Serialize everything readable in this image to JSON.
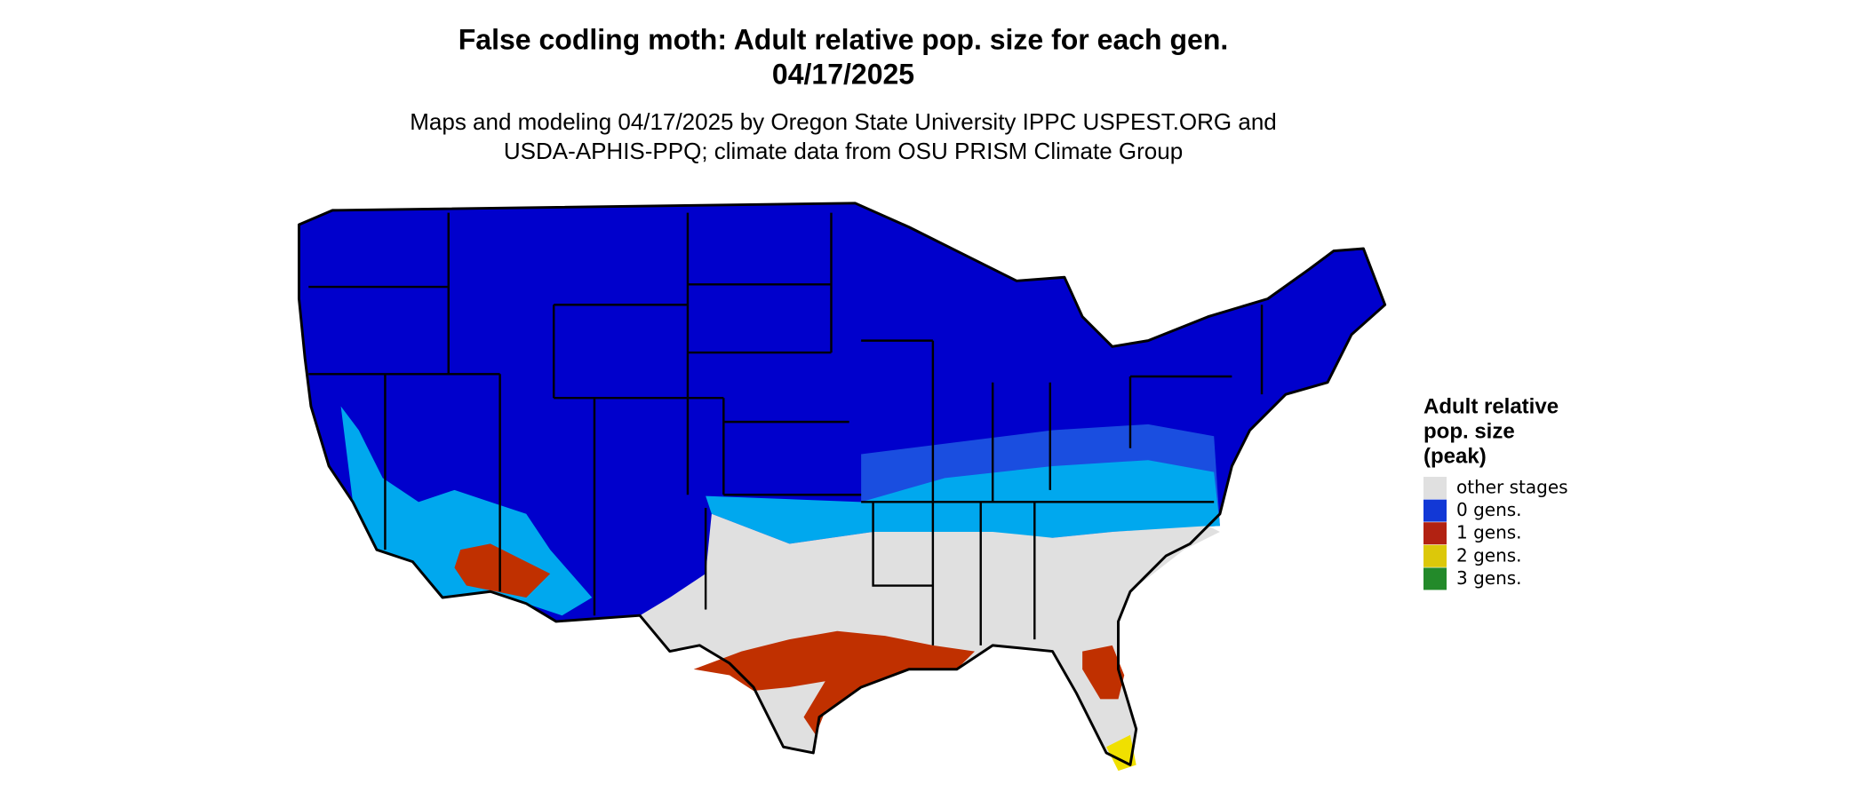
{
  "header": {
    "title": "False codling moth: Adult relative pop. size for each gen.",
    "date": "04/17/2025",
    "subtitle_lines": [
      "Maps and modeling 04/17/2025 by Oregon State University IPPC USPEST.ORG and",
      "USDA-APHIS-PPQ; climate data from OSU PRISM Climate Group"
    ]
  },
  "legend": {
    "title_lines": [
      "Adult relative",
      "pop. size",
      "(peak)"
    ],
    "items": [
      {
        "label": "other stages",
        "color": "#e0e0e0"
      },
      {
        "label": "0 gens.",
        "color": "#1238d6"
      },
      {
        "label": "1 gens.",
        "color": "#b22212"
      },
      {
        "label": "2 gens.",
        "color": "#dcc80a"
      },
      {
        "label": "3 gens.",
        "color": "#238a2a"
      }
    ]
  }
}
